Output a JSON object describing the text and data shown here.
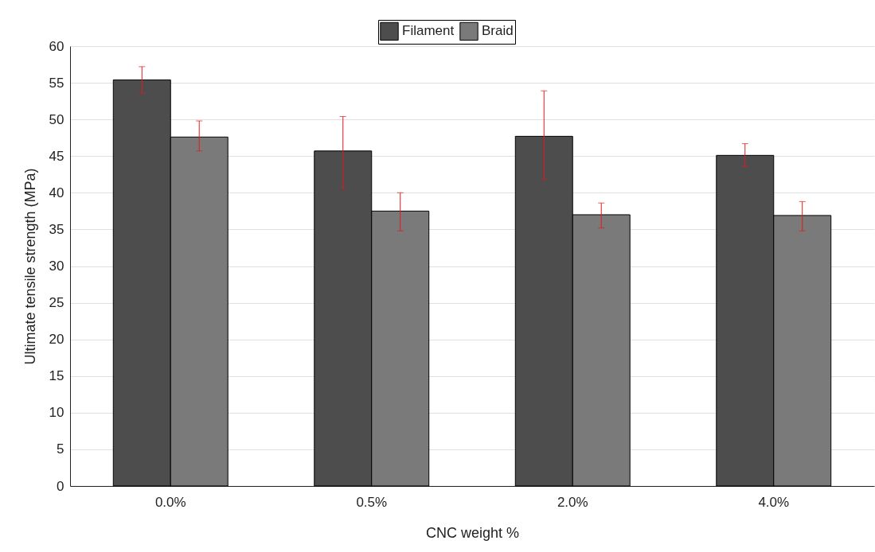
{
  "chart_data": {
    "type": "bar",
    "xlabel": "CNC weight %",
    "ylabel": "Ultimate tensile strength (MPa)",
    "categories": [
      "0.0%",
      "0.5%",
      "2.0%",
      "4.0%"
    ],
    "series": [
      {
        "name": "Filament",
        "color": "#4d4d4d",
        "values": [
          55.4,
          45.7,
          47.7,
          45.1
        ],
        "errors": [
          [
            53.6,
            57.2
          ],
          [
            40.6,
            50.4
          ],
          [
            41.8,
            53.9
          ],
          [
            43.6,
            46.7
          ]
        ]
      },
      {
        "name": "Braid",
        "color": "#7a7a7a",
        "values": [
          47.6,
          37.5,
          37.0,
          36.9
        ],
        "errors": [
          [
            45.7,
            49.8
          ],
          [
            34.8,
            40.0
          ],
          [
            35.2,
            38.6
          ],
          [
            34.8,
            38.8
          ]
        ]
      }
    ],
    "ylim": [
      0,
      60
    ],
    "yticks": [
      0,
      5,
      10,
      15,
      20,
      25,
      30,
      35,
      40,
      45,
      50,
      55,
      60
    ],
    "grid": "y",
    "legend": "top"
  }
}
